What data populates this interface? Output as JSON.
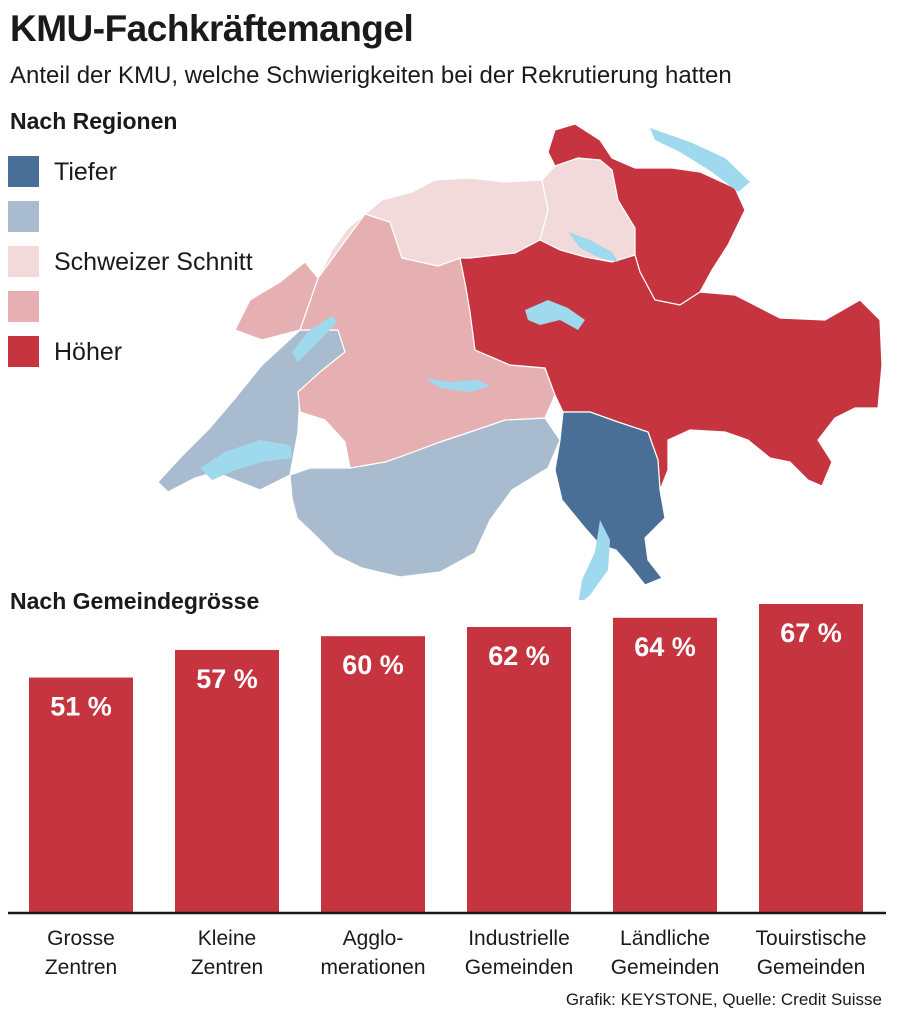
{
  "header": {
    "title": "KMU-Fachkräftemangel",
    "subtitle": "Anteil der KMU, welche Schwierigkeiten bei der Rekrutierung hatten"
  },
  "map": {
    "section_title": "Nach Regionen",
    "legend": [
      {
        "label": "Tiefer",
        "color": "#4a6f96"
      },
      {
        "label": "",
        "color": "#a9bccf"
      },
      {
        "label": "Schweizer Schnitt",
        "color": "#f2dadb"
      },
      {
        "label": "",
        "color": "#e6b0b3"
      },
      {
        "label": "Höher",
        "color": "#c5343f"
      }
    ],
    "lake_color": "#9fd9ee"
  },
  "chart_data": {
    "type": "bar",
    "title": "Nach Gemeindegrösse",
    "categories": [
      "Grosse\nZentren",
      "Kleine\nZentren",
      "Agglo-\nmerationen",
      "Industrielle\nGemeinden",
      "Ländliche\nGemeinden",
      "Touirstische\nGemeinden"
    ],
    "values": [
      51,
      57,
      60,
      62,
      64,
      67
    ],
    "value_labels": [
      "51 %",
      "57 %",
      "60 %",
      "62 %",
      "64 %",
      "67 %"
    ],
    "bar_color": "#c5343f",
    "ylim": [
      0,
      67
    ],
    "xlabel": "",
    "ylabel": ""
  },
  "footer": {
    "source": "Grafik: KEYSTONE, Quelle: Credit Suisse"
  }
}
